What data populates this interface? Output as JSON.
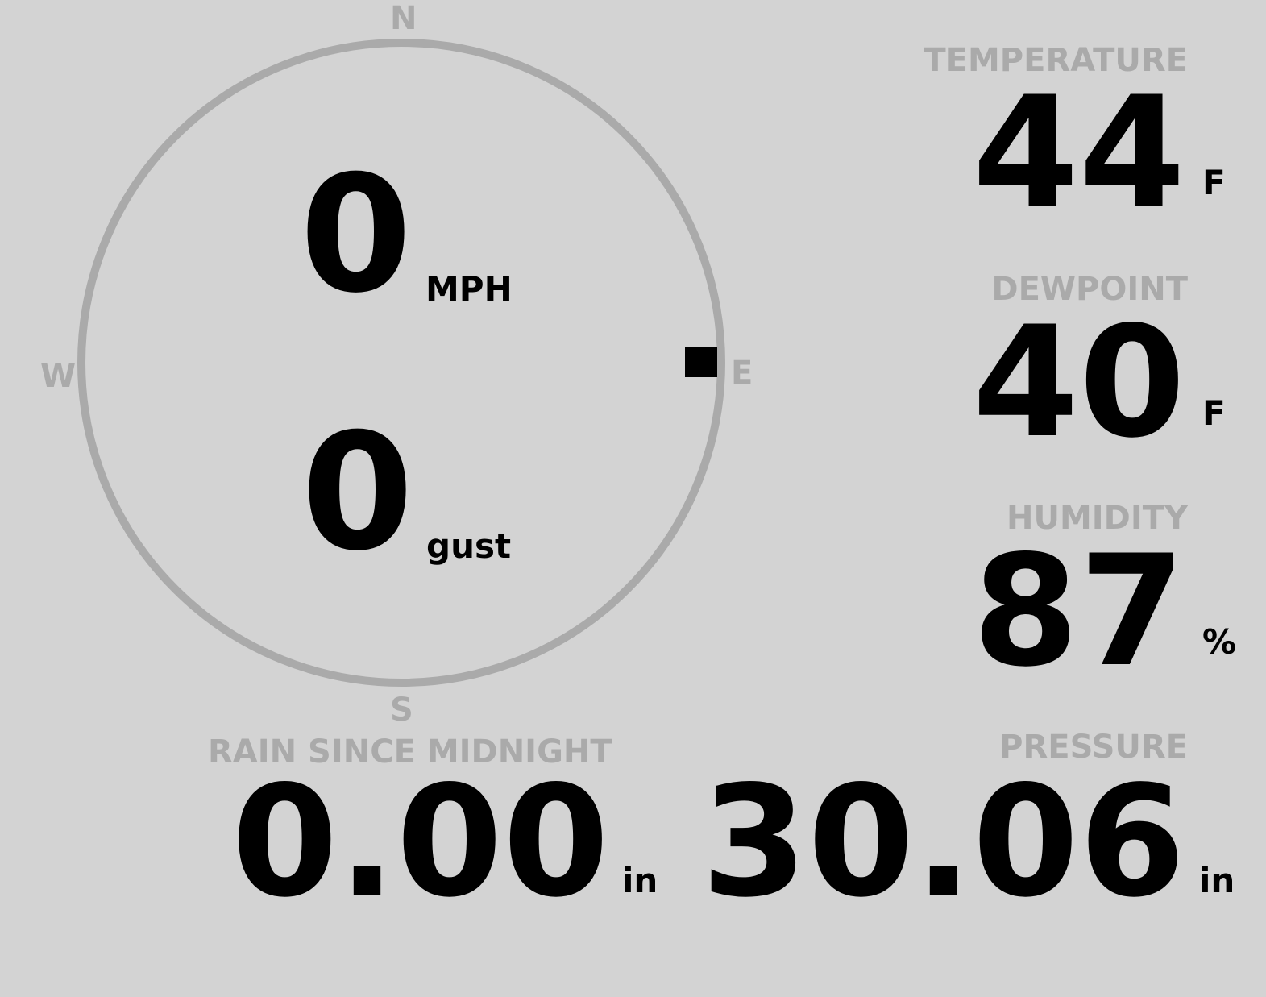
{
  "wind": {
    "speed": "0",
    "speed_unit": "MPH",
    "gust": "0",
    "gust_unit": "gust",
    "direction_degrees": 90,
    "compass": {
      "n": "N",
      "e": "E",
      "s": "S",
      "w": "W"
    }
  },
  "temperature": {
    "label": "TEMPERATURE",
    "value": "44",
    "unit": "F"
  },
  "dewpoint": {
    "label": "DEWPOINT",
    "value": "40",
    "unit": "F"
  },
  "humidity": {
    "label": "HUMIDITY",
    "value": "87",
    "unit": "%"
  },
  "rain": {
    "label": "RAIN SINCE MIDNIGHT",
    "value": "0.00",
    "unit": "in"
  },
  "pressure": {
    "label": "PRESSURE",
    "value": "30.06",
    "unit": "in"
  },
  "colors": {
    "background": "#d3d3d3",
    "label": "#aaaaaa",
    "value": "#000000"
  }
}
